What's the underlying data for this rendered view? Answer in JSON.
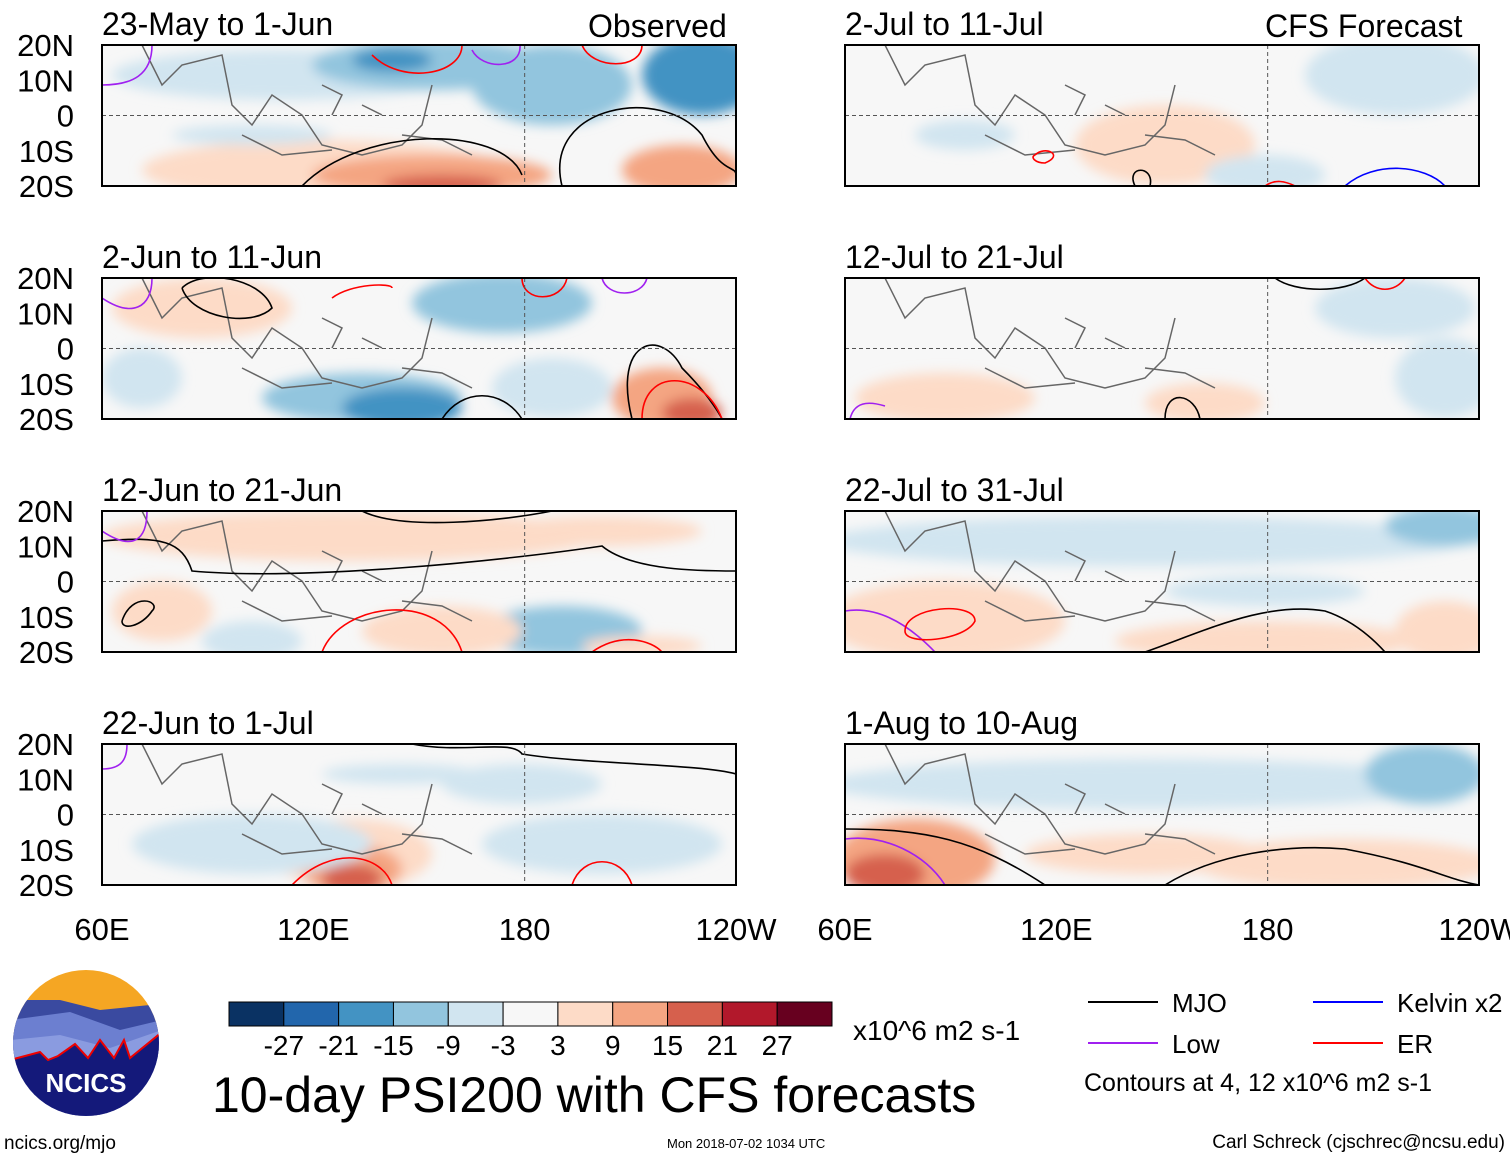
{
  "chart_data": {
    "type": "heatmap",
    "title": "10-day PSI200 with CFS forecasts",
    "units": "x10^6 m2 s-1",
    "columns": [
      {
        "label": "Observed",
        "panels": [
          "23-May to 1-Jun",
          "2-Jun to 11-Jun",
          "12-Jun to 21-Jun",
          "22-Jun to 1-Jul"
        ]
      },
      {
        "label": "CFS Forecast",
        "panels": [
          "2-Jul to 11-Jul",
          "12-Jul to 21-Jul",
          "22-Jul to 31-Jul",
          "1-Aug to 10-Aug"
        ]
      }
    ],
    "y_ticks": [
      "20N",
      "10N",
      "0",
      "10S",
      "20S"
    ],
    "x_ticks": [
      "60E",
      "120E",
      "180",
      "120W"
    ],
    "colorbar": {
      "levels": [
        "-27",
        "-21",
        "-15",
        "-9",
        "-3",
        "3",
        "9",
        "15",
        "21",
        "27"
      ],
      "colors": [
        "#0a3263",
        "#2266ac",
        "#4393c3",
        "#92c5de",
        "#d1e5f0",
        "#f7f7f7",
        "#fddbc7",
        "#f4a582",
        "#d6604d",
        "#b2182b",
        "#67001f"
      ]
    },
    "legend": [
      {
        "label": "MJO",
        "color": "#000000"
      },
      {
        "label": "Kelvin x2",
        "color": "#0000ff"
      },
      {
        "label": "Low",
        "color": "#a020f0"
      },
      {
        "label": "ER",
        "color": "#ff0000"
      }
    ],
    "contour_note": "Contours at 4, 12 x10^6 m2 s-1"
  },
  "footer": {
    "logo_text": "NCICS",
    "url": "ncics.org/mjo",
    "timestamp": "Mon 2018-07-02 1034 UTC",
    "credit": "Carl Schreck (cjschrec@ncsu.edu)"
  }
}
